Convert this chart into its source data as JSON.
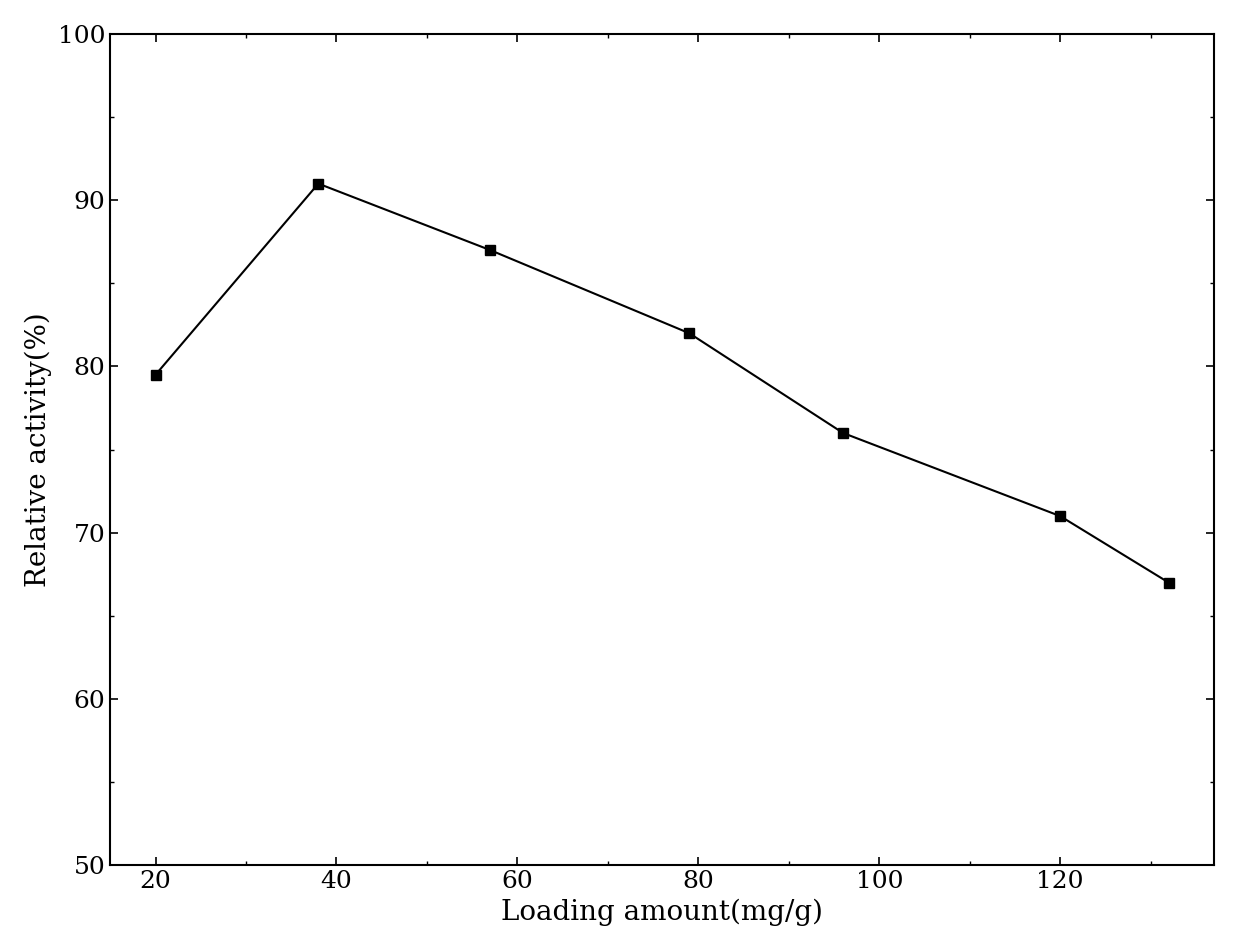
{
  "x": [
    20,
    38,
    57,
    79,
    96,
    120,
    132
  ],
  "y": [
    79.5,
    91.0,
    87.0,
    82.0,
    76.0,
    71.0,
    67.0
  ],
  "xlabel": "Loading amount(mg/g)",
  "ylabel": "Relative activity(%)",
  "xlim": [
    15,
    137
  ],
  "ylim": [
    50,
    100
  ],
  "xticks": [
    20,
    40,
    60,
    80,
    100,
    120
  ],
  "yticks": [
    50,
    60,
    70,
    80,
    90,
    100
  ],
  "line_color": "#000000",
  "marker": "s",
  "marker_color": "#000000",
  "marker_size": 7,
  "linewidth": 1.5,
  "background_color": "#ffffff",
  "xlabel_fontsize": 20,
  "ylabel_fontsize": 20,
  "tick_fontsize": 18
}
